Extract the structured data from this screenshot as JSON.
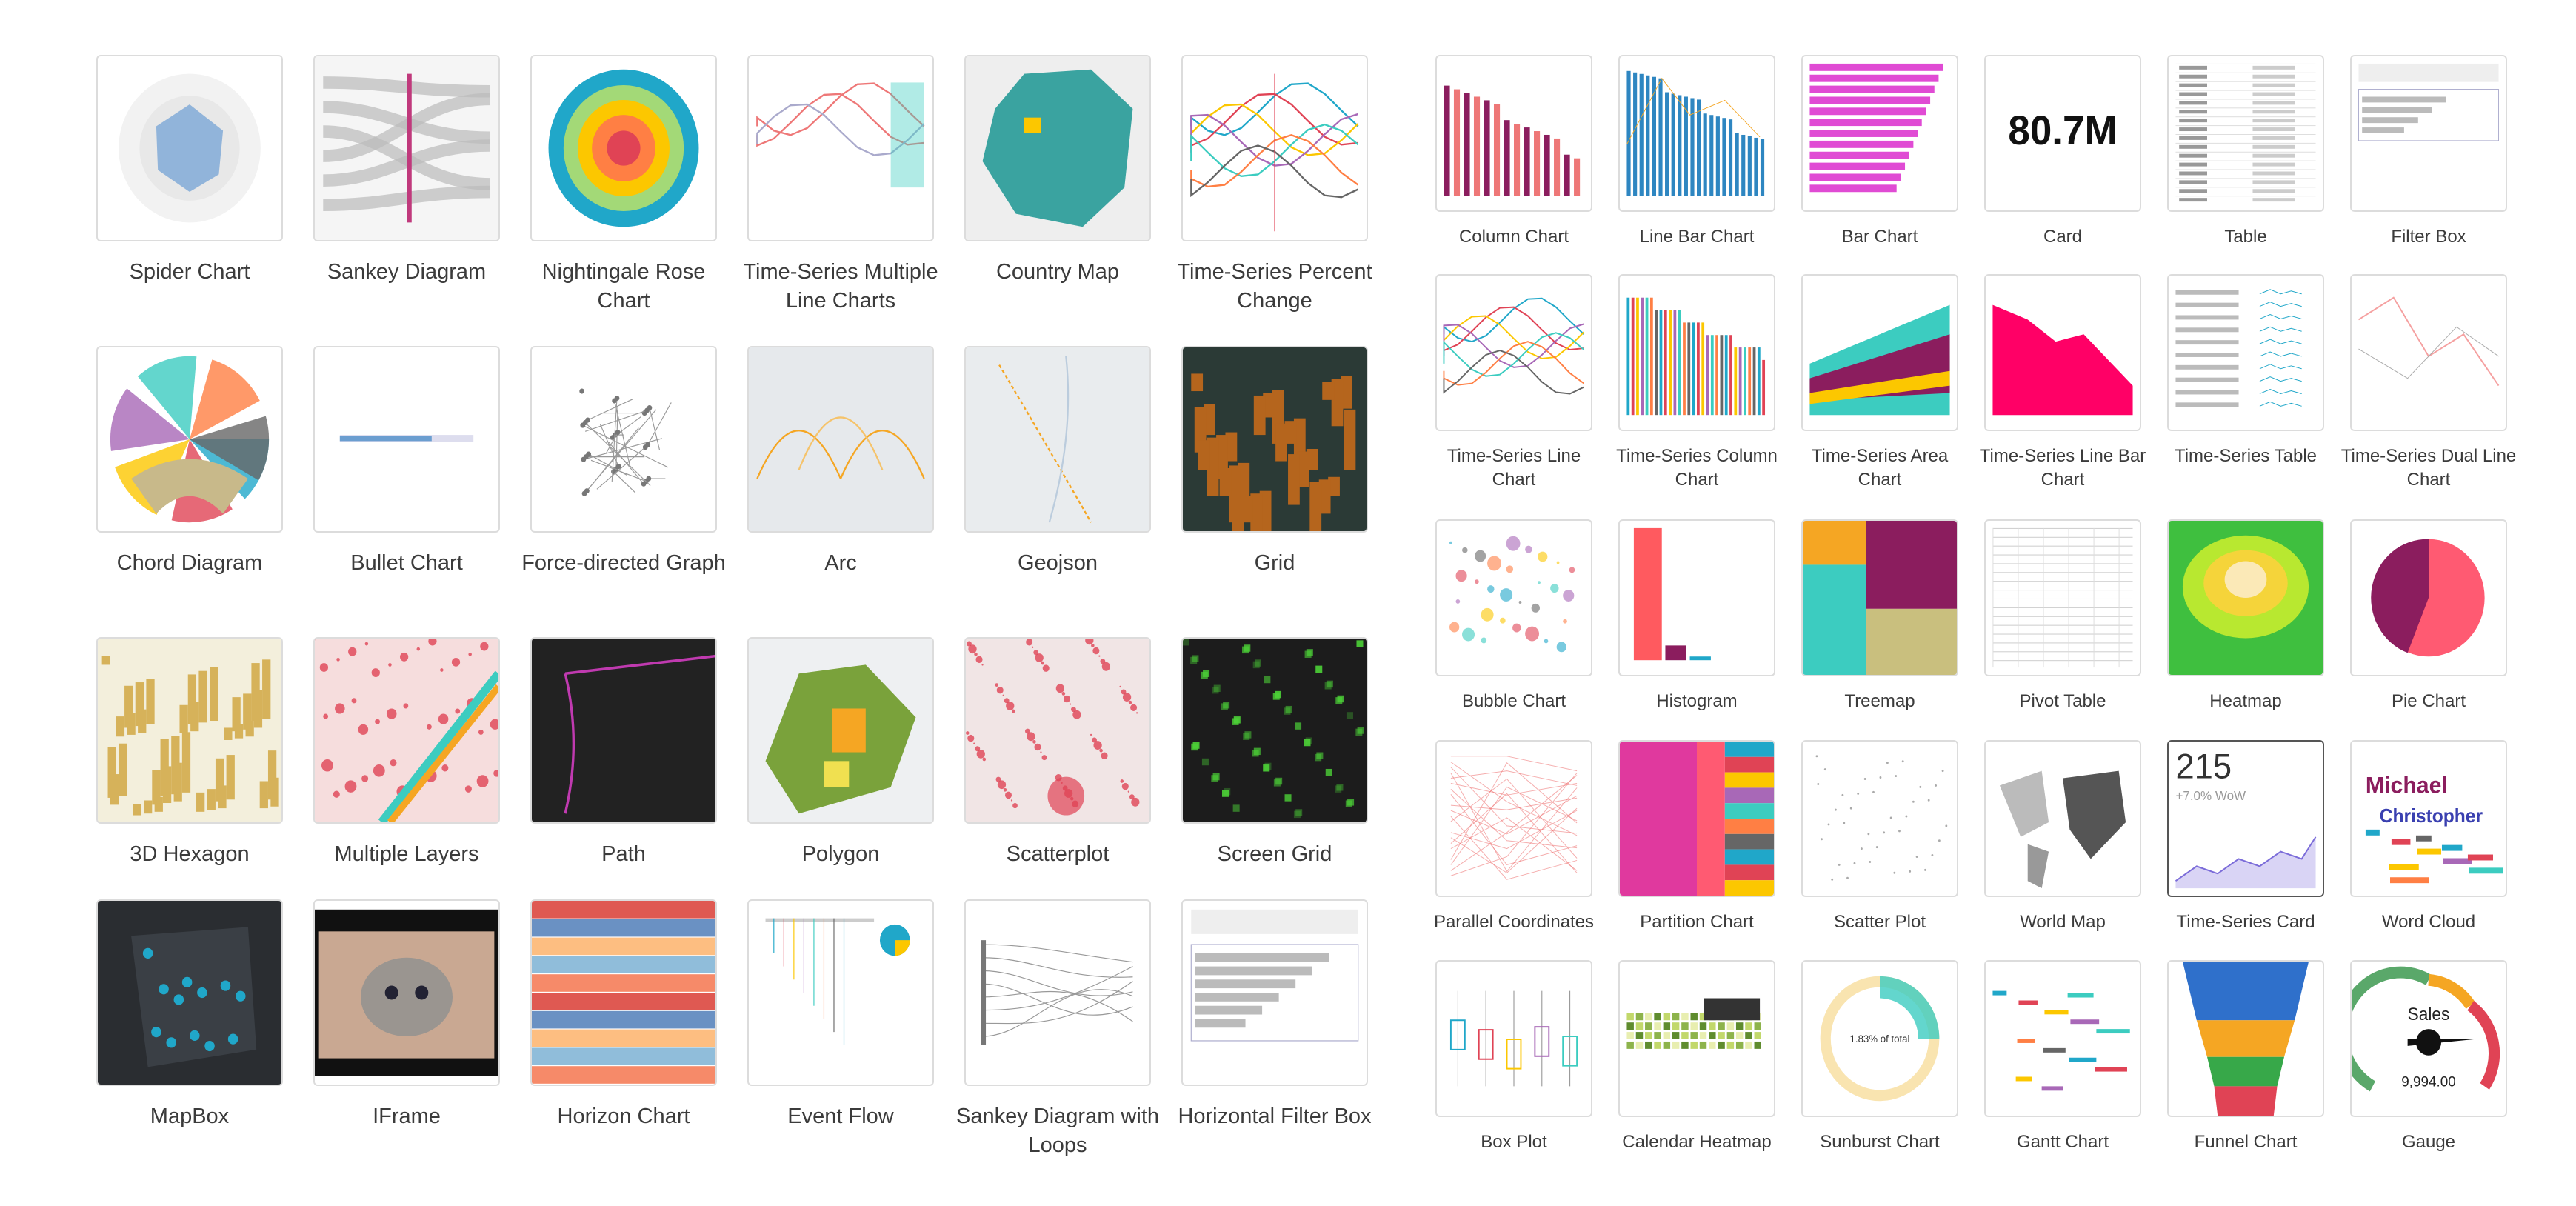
{
  "left_gallery": [
    [
      "Spider Chart",
      "Sankey Diagram",
      "Nightingale Rose Chart",
      "Time-Series Multiple Line Charts",
      "Country Map",
      "Time-Series Percent Change"
    ],
    [
      "Chord Diagram",
      "Bullet Chart",
      "Force-directed Graph",
      "Arc",
      "Geojson",
      "Grid"
    ],
    [
      "3D Hexagon",
      "Multiple Layers",
      "Path",
      "Polygon",
      "Scatterplot",
      "Screen Grid"
    ],
    [
      "MapBox",
      "IFrame",
      "Horizon Chart",
      "Event Flow",
      "Sankey Diagram with Loops",
      "Horizontal Filter Box"
    ]
  ],
  "right_gallery": [
    [
      "Column Chart",
      "Line Bar Chart",
      "Bar Chart",
      "Card",
      "Table",
      "Filter Box"
    ],
    [
      "Time-Series Line Chart",
      "Time-Series Column Chart",
      "Time-Series Area Chart",
      "Time-Series Line Bar Chart",
      "Time-Series Table",
      "Time-Series Dual Line Chart"
    ],
    [
      "Bubble Chart",
      "Histogram",
      "Treemap",
      "Pivot Table",
      "Heatmap",
      "Pie Chart"
    ],
    [
      "Parallel Coordinates",
      "Partition Chart",
      "Scatter Plot",
      "World Map",
      "Time-Series Card",
      "Word Cloud"
    ],
    [
      "Box Plot",
      "Calendar Heatmap",
      "Sunburst Chart",
      "Gantt Chart",
      "Funnel Chart",
      "Gauge"
    ]
  ],
  "thumb_text": {
    "card_value": "80.7M",
    "ts_card_value": "215",
    "ts_card_delta": "+7.0% WoW",
    "sunburst_pct": "1.83% of total",
    "gauge_title": "Sales",
    "gauge_value": "9,994.00",
    "wordcloud_1": "Michael",
    "wordcloud_2": "Christopher"
  },
  "colors": {
    "accent_teal": "#20a7c9",
    "accent_pink": "#e04355",
    "magenta": "#8b1d5e",
    "map_teal": "#3aa3a0",
    "selected_border": "#555555"
  }
}
